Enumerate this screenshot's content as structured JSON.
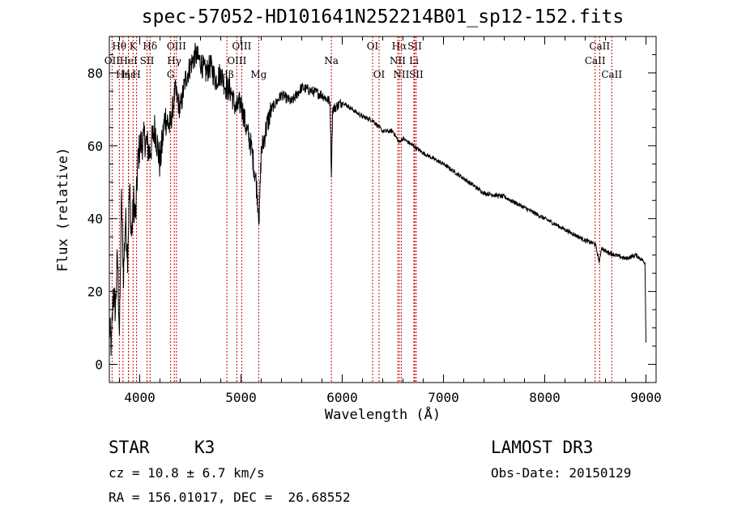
{
  "chart_data": {
    "type": "line",
    "title": "spec-57052-HD101641N252214B01_sp12-152.fits",
    "xlabel": "Wavelength (Å)",
    "ylabel": "Flux (relative)",
    "xlim": [
      3700,
      9100
    ],
    "ylim": [
      -5,
      90
    ],
    "xticks": [
      4000,
      5000,
      6000,
      7000,
      8000,
      9000
    ],
    "yticks": [
      0,
      20,
      40,
      60,
      80
    ],
    "xtick_labels": [
      "4000",
      "5000",
      "6000",
      "7000",
      "8000",
      "9000"
    ],
    "ytick_labels": [
      "0",
      "20",
      "40",
      "60",
      "80"
    ],
    "series": [
      {
        "name": "flux",
        "x": [
          3700,
          3720,
          3740,
          3760,
          3780,
          3800,
          3820,
          3840,
          3860,
          3880,
          3900,
          3920,
          3940,
          3960,
          3980,
          4000,
          4050,
          4100,
          4150,
          4200,
          4250,
          4300,
          4350,
          4400,
          4450,
          4500,
          4550,
          4600,
          4650,
          4700,
          4750,
          4800,
          4850,
          4900,
          4950,
          5000,
          5050,
          5100,
          5150,
          5180,
          5200,
          5250,
          5300,
          5400,
          5500,
          5600,
          5700,
          5800,
          5880,
          5893,
          5905,
          6000,
          6100,
          6200,
          6300,
          6400,
          6500,
          6560,
          6600,
          6700,
          6800,
          7000,
          7200,
          7400,
          7600,
          7800,
          8000,
          8200,
          8400,
          8500,
          8540,
          8560,
          8600,
          8700,
          8800,
          8900,
          8990,
          9000
        ],
        "y": [
          10,
          5,
          20,
          15,
          30,
          8,
          45,
          25,
          40,
          30,
          48,
          35,
          45,
          40,
          55,
          60,
          62,
          58,
          65,
          55,
          68,
          65,
          75,
          70,
          78,
          82,
          85,
          83,
          80,
          82,
          78,
          80,
          76,
          75,
          70,
          72,
          65,
          60,
          50,
          40,
          58,
          65,
          70,
          74,
          72,
          76,
          75,
          74,
          72,
          52,
          70,
          72,
          70,
          68,
          67,
          64,
          64,
          61,
          62,
          60,
          58,
          55,
          51,
          47,
          46,
          43,
          40,
          37,
          34,
          33,
          28,
          32,
          31,
          30,
          29,
          30,
          28,
          6
        ]
      }
    ],
    "line_color": "#000000",
    "marker_color": "#cc0000",
    "line_markers": [
      {
        "label": "Hθ",
        "wavelength": 3798,
        "row": 0
      },
      {
        "label": "OII",
        "wavelength": 3727,
        "row": 1
      },
      {
        "label": "Hε",
        "wavelength": 3889,
        "row": 2
      },
      {
        "label": "K",
        "wavelength": 3934,
        "row": 0
      },
      {
        "label": "HeI",
        "wavelength": 3889,
        "row": 1
      },
      {
        "label": "Hη",
        "wavelength": 3835,
        "row": 2
      },
      {
        "label": "Hδ",
        "wavelength": 4102,
        "row": 0
      },
      {
        "label": "SII",
        "wavelength": 4072,
        "row": 1
      },
      {
        "label": "H",
        "wavelength": 3969,
        "row": 2
      },
      {
        "label": "OIII",
        "wavelength": 4363,
        "row": 0
      },
      {
        "label": "Hγ",
        "wavelength": 4341,
        "row": 1
      },
      {
        "label": "G",
        "wavelength": 4305,
        "row": 2
      },
      {
        "label": "OIII",
        "wavelength": 5007,
        "row": 0
      },
      {
        "label": "OIII",
        "wavelength": 4959,
        "row": 1
      },
      {
        "label": "Hβ",
        "wavelength": 4861,
        "row": 2
      },
      {
        "label": "Mg",
        "wavelength": 5175,
        "row": 2
      },
      {
        "label": "Na",
        "wavelength": 5893,
        "row": 1
      },
      {
        "label": "OI",
        "wavelength": 6300,
        "row": 0
      },
      {
        "label": "OI",
        "wavelength": 6364,
        "row": 2
      },
      {
        "label": "Hα",
        "wavelength": 6563,
        "row": 0
      },
      {
        "label": "SII",
        "wavelength": 6716,
        "row": 0
      },
      {
        "label": "NII",
        "wavelength": 6548,
        "row": 1
      },
      {
        "label": "Li",
        "wavelength": 6708,
        "row": 1
      },
      {
        "label": "NII",
        "wavelength": 6583,
        "row": 2
      },
      {
        "label": "SII",
        "wavelength": 6731,
        "row": 2
      },
      {
        "label": "CaII",
        "wavelength": 8542,
        "row": 0
      },
      {
        "label": "CaII",
        "wavelength": 8498,
        "row": 1
      },
      {
        "label": "CaII",
        "wavelength": 8662,
        "row": 2
      }
    ]
  },
  "info": {
    "class": "STAR",
    "subclass": "K3",
    "survey": "LAMOST DR3",
    "cz": "cz = 10.8 ± 6.7 km/s",
    "obs_date": "Obs-Date: 20150129",
    "coords": "RA = 156.01017, DEC =  26.68552"
  }
}
